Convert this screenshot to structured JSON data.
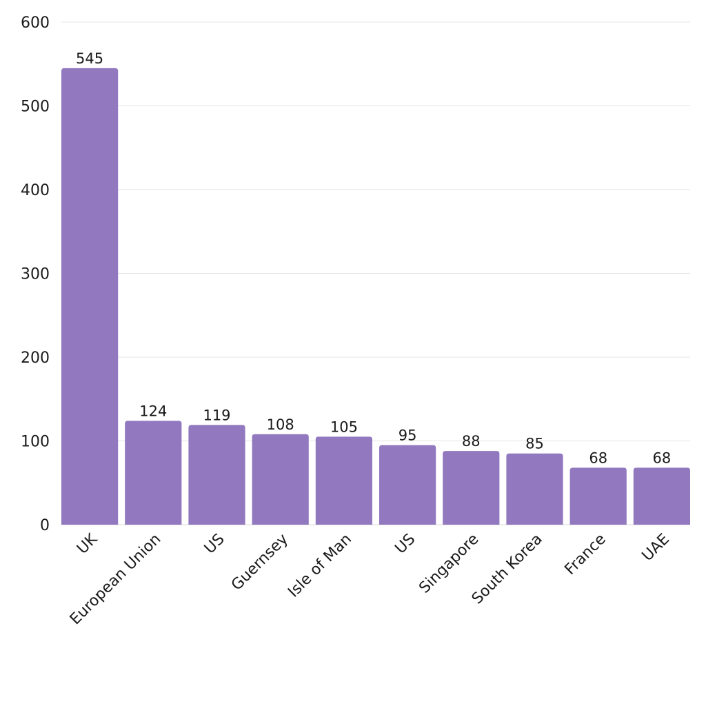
{
  "chart_data": {
    "type": "bar",
    "title": "",
    "xlabel": "",
    "ylabel": "",
    "categories": [
      "UK",
      "European Union",
      "US",
      "Guernsey",
      "Isle of Man",
      "US",
      "Singapore",
      "South Korea",
      "France",
      "UAE"
    ],
    "values": [
      545,
      124,
      119,
      108,
      105,
      95,
      88,
      85,
      68,
      68
    ],
    "value_labels": [
      "545",
      "124",
      "119",
      "108",
      "105",
      "95",
      "88",
      "85",
      "68",
      "68"
    ],
    "ylim": [
      0,
      600
    ],
    "yticks": [
      0,
      100,
      200,
      300,
      400,
      500,
      600
    ],
    "ytick_labels": [
      "0",
      "100",
      "200",
      "300",
      "400",
      "500",
      "600"
    ],
    "grid": true,
    "legend": "none",
    "bar_color": "#9278bf"
  }
}
